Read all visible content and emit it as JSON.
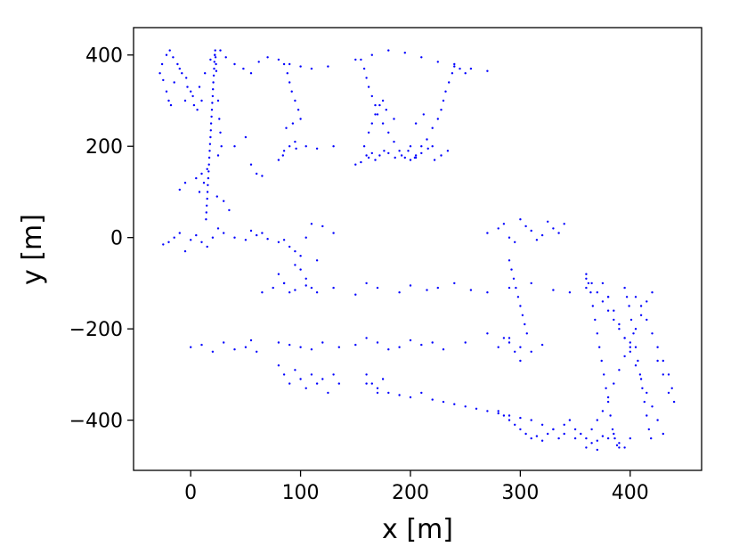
{
  "chart_data": {
    "type": "scatter",
    "xlabel": "x [m]",
    "ylabel": "y [m]",
    "xlim": [
      -52,
      465
    ],
    "ylim": [
      -510,
      460
    ],
    "xticks": [
      0,
      100,
      200,
      300,
      400
    ],
    "yticks": [
      400,
      200,
      0,
      -200,
      -400
    ],
    "xtick_labels": [
      "0",
      "100",
      "200",
      "300",
      "400"
    ],
    "ytick_labels": [
      "400",
      "200",
      "0",
      "−200",
      "−400"
    ],
    "grid": false,
    "point_color": "#0000ff",
    "series": [
      {
        "x": [
          -28,
          -25,
          -22,
          -20,
          -18,
          -15,
          -12,
          -8,
          -5,
          -3,
          0,
          3,
          6,
          10,
          -26,
          -22,
          -19,
          -16,
          -10,
          -4,
          2,
          8,
          13,
          18,
          22,
          27,
          32,
          40,
          48,
          55,
          62,
          70,
          80,
          90,
          100,
          110,
          125,
          150,
          165,
          180,
          195,
          210,
          225,
          240,
          255,
          270,
          14,
          14.3,
          14.6,
          15,
          15.3,
          15.6,
          16,
          16.3,
          16.6,
          17,
          17.3,
          17.6,
          18,
          18.3,
          18.6,
          19,
          19.3,
          19.6,
          20,
          20.3,
          20.6,
          21,
          21.3,
          21.6,
          22,
          22.3,
          22.6,
          23,
          23.3,
          25,
          26,
          27,
          28,
          10,
          12,
          8,
          24,
          30,
          35,
          -10,
          -5,
          5,
          15,
          25,
          40,
          50,
          55,
          60,
          65,
          85,
          88,
          90,
          92,
          95,
          98,
          100,
          85,
          90,
          95,
          87,
          93,
          80,
          84,
          96,
          105,
          115,
          130,
          155,
          158,
          160,
          162,
          165,
          168,
          170,
          175,
          180,
          185,
          190,
          195,
          200,
          205,
          210,
          215,
          220,
          225,
          228,
          230,
          232,
          235,
          238,
          240,
          245,
          250,
          158,
          160,
          162,
          165,
          168,
          172,
          176,
          180,
          186,
          192,
          198,
          204,
          210,
          216,
          222,
          228,
          234,
          150,
          155,
          200,
          205,
          162,
          165,
          168,
          172,
          175,
          178,
          185,
          205,
          212,
          220,
          -25,
          -20,
          -15,
          -10,
          -5,
          0,
          5,
          10,
          15,
          20,
          25,
          30,
          40,
          50,
          55,
          60,
          65,
          70,
          80,
          85,
          90,
          95,
          100,
          105,
          110,
          120,
          130,
          80,
          85,
          90,
          95,
          100,
          105,
          110,
          115,
          270,
          280,
          285,
          290,
          295,
          300,
          305,
          310,
          315,
          320,
          325,
          330,
          335,
          340,
          290,
          292,
          294,
          296,
          298,
          300,
          302,
          304,
          306,
          290,
          295,
          300,
          280,
          285,
          65,
          75,
          85,
          95,
          105,
          115,
          130,
          150,
          160,
          170,
          190,
          200,
          215,
          225,
          240,
          255,
          270,
          290,
          310,
          330,
          345,
          360,
          375,
          380,
          0,
          10,
          20,
          30,
          40,
          50,
          55,
          60,
          80,
          90,
          100,
          110,
          120,
          135,
          150,
          160,
          170,
          180,
          190,
          200,
          210,
          220,
          230,
          250,
          270,
          290,
          300,
          310,
          320,
          80,
          85,
          90,
          95,
          100,
          105,
          110,
          115,
          120,
          125,
          130,
          135,
          160,
          165,
          170,
          175,
          160,
          170,
          180,
          190,
          200,
          210,
          220,
          230,
          240,
          250,
          260,
          270,
          280,
          290,
          300,
          310,
          320,
          330,
          340,
          350,
          360,
          370,
          280,
          285,
          290,
          295,
          300,
          305,
          310,
          315,
          320,
          325,
          330,
          335,
          340,
          345,
          350,
          355,
          360,
          365,
          370,
          375,
          380,
          385,
          390,
          395,
          400,
          360,
          362,
          364,
          366,
          368,
          370,
          372,
          374,
          376,
          378,
          380,
          382,
          384,
          386,
          388,
          390,
          395,
          397,
          399,
          401,
          403,
          405,
          407,
          409,
          411,
          413,
          415,
          417,
          419,
          405,
          410,
          415,
          420,
          425,
          430,
          435,
          438,
          440,
          365,
          370,
          375,
          380,
          385,
          390,
          395,
          400,
          405,
          410,
          415,
          420,
          425,
          430,
          435,
          380,
          385,
          390,
          395,
          400,
          405,
          410,
          415,
          420,
          425,
          430,
          360,
          365,
          370,
          375,
          380,
          385,
          390,
          395,
          400
        ],
        "y": [
          360,
          345,
          320,
          300,
          290,
          340,
          380,
          360,
          300,
          330,
          320,
          290,
          280,
          300,
          380,
          400,
          410,
          395,
          370,
          350,
          310,
          330,
          360,
          390,
          400,
          410,
          395,
          380,
          370,
          360,
          385,
          395,
          390,
          380,
          375,
          370,
          375,
          390,
          400,
          410,
          405,
          395,
          385,
          375,
          370,
          365,
          40,
          55,
          70,
          85,
          100,
          115,
          130,
          145,
          160,
          175,
          190,
          205,
          220,
          235,
          250,
          265,
          280,
          295,
          310,
          325,
          340,
          355,
          370,
          385,
          400,
          410,
          395,
          380,
          365,
          300,
          260,
          230,
          200,
          140,
          120,
          100,
          90,
          80,
          60,
          105,
          120,
          130,
          150,
          180,
          200,
          220,
          160,
          140,
          135,
          380,
          360,
          340,
          320,
          300,
          280,
          260,
          190,
          200,
          210,
          240,
          250,
          170,
          180,
          195,
          200,
          195,
          200,
          390,
          370,
          350,
          330,
          310,
          290,
          270,
          250,
          230,
          210,
          190,
          175,
          170,
          180,
          200,
          215,
          240,
          260,
          280,
          300,
          320,
          340,
          360,
          380,
          370,
          360,
          200,
          180,
          175,
          185,
          170,
          180,
          190,
          185,
          175,
          180,
          190,
          175,
          185,
          195,
          170,
          180,
          190,
          160,
          165,
          200,
          175,
          230,
          250,
          270,
          290,
          300,
          280,
          260,
          250,
          270,
          200,
          -15,
          -10,
          0,
          10,
          -30,
          -5,
          5,
          -10,
          -20,
          0,
          20,
          10,
          0,
          -5,
          15,
          5,
          10,
          -3,
          -10,
          -5,
          -20,
          -30,
          -40,
          0,
          30,
          25,
          10,
          -80,
          -100,
          -120,
          -60,
          -70,
          -90,
          -110,
          -50,
          10,
          20,
          30,
          0,
          -10,
          40,
          25,
          15,
          -5,
          5,
          35,
          20,
          10,
          30,
          -50,
          -70,
          -90,
          -110,
          -130,
          -150,
          -170,
          -190,
          -210,
          -230,
          -250,
          -270,
          -240,
          -220,
          -120,
          -110,
          -100,
          -115,
          -105,
          -120,
          -110,
          -125,
          -100,
          -110,
          -120,
          -105,
          -115,
          -110,
          -100,
          -115,
          -120,
          -110,
          -100,
          -115,
          -120,
          -110,
          -100,
          -130,
          -240,
          -235,
          -250,
          -230,
          -245,
          -240,
          -225,
          -250,
          -230,
          -235,
          -240,
          -245,
          -230,
          -240,
          -235,
          -220,
          -230,
          -245,
          -240,
          -225,
          -235,
          -230,
          -245,
          -230,
          -210,
          -220,
          -240,
          -250,
          -235,
          -280,
          -300,
          -320,
          -290,
          -310,
          -330,
          -300,
          -320,
          -310,
          -340,
          -300,
          -320,
          -300,
          -320,
          -340,
          -310,
          -320,
          -330,
          -340,
          -345,
          -350,
          -340,
          -355,
          -360,
          -365,
          -370,
          -375,
          -380,
          -385,
          -390,
          -395,
          -400,
          -410,
          -420,
          -430,
          -440,
          -460,
          -465,
          -380,
          -390,
          -400,
          -410,
          -420,
          -430,
          -440,
          -435,
          -445,
          -430,
          -420,
          -440,
          -410,
          -400,
          -420,
          -430,
          -440,
          -450,
          -445,
          -435,
          -440,
          -430,
          -450,
          -460,
          -440,
          -80,
          -100,
          -120,
          -150,
          -180,
          -210,
          -240,
          -270,
          -300,
          -330,
          -360,
          -390,
          -420,
          -440,
          -455,
          -460,
          -110,
          -130,
          -150,
          -180,
          -210,
          -240,
          -270,
          -300,
          -330,
          -360,
          -390,
          -420,
          -440,
          -130,
          -150,
          -180,
          -210,
          -240,
          -270,
          -300,
          -330,
          -360,
          -420,
          -400,
          -380,
          -350,
          -320,
          -290,
          -260,
          -230,
          -200,
          -170,
          -140,
          -120,
          -270,
          -300,
          -340,
          -130,
          -160,
          -190,
          -220,
          -250,
          -280,
          -310,
          -340,
          -370,
          -400,
          -430,
          -90,
          -100,
          -120,
          -140,
          -160,
          -180,
          -200,
          -220,
          -240
        ]
      }
    ]
  }
}
